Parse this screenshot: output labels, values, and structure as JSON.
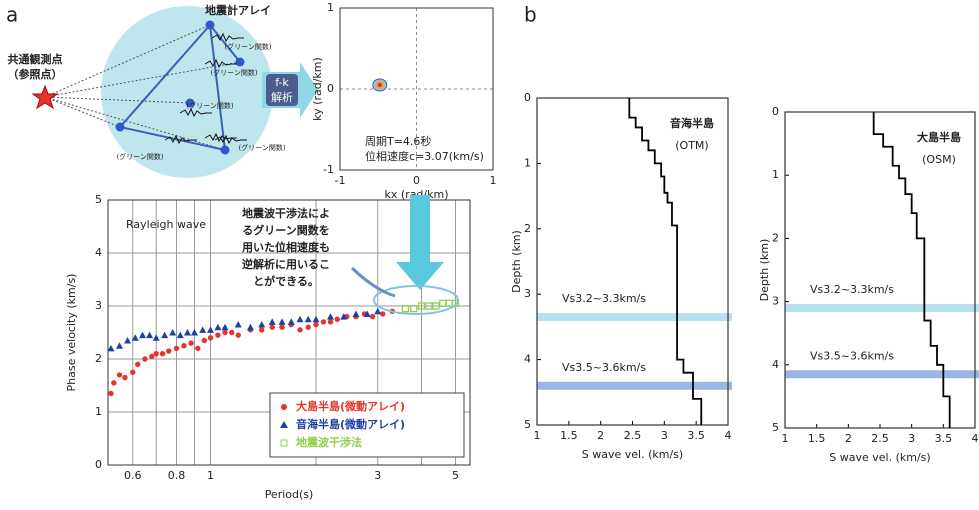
{
  "panel_labels": [
    "a",
    "b"
  ],
  "diagram": {
    "title": "地震計アレイ",
    "reference_point": [
      "共通観測点",
      "（参照点）"
    ],
    "green_function_labels": [
      "(グリーン関数)",
      "(グリーン関数)",
      "(グリーン関数)",
      "(グリーン関数)",
      "(グリーン関数)"
    ],
    "process": [
      "f-k",
      "解析"
    ]
  },
  "chart_data": [
    {
      "type": "contour",
      "xlabel": "kx (rad/km)",
      "ylabel": "ky (rad/km)",
      "xlim": [
        -1,
        1
      ],
      "ylim": [
        -1,
        1
      ],
      "xticks": [
        -1,
        0,
        1
      ],
      "yticks": [
        -1,
        0,
        1
      ],
      "grid": true,
      "peak": {
        "x": -0.48,
        "y": 0.05
      },
      "annotations": [
        "周期T=4.6秒",
        "位相速度c=3.07(km/s)"
      ]
    },
    {
      "type": "scatter",
      "xlabel": "Period(s)",
      "ylabel": "Phase velocity (km/s)",
      "xscale": "log",
      "xlim": [
        0.51,
        5.5
      ],
      "ylim": [
        0,
        5
      ],
      "xticks": [
        0.6,
        0.8,
        1,
        3,
        5
      ],
      "minor_xticks": [
        0.7,
        0.9,
        2,
        4
      ],
      "yticks": [
        0,
        1,
        2,
        3,
        4,
        5
      ],
      "grid": true,
      "legend": "lower right",
      "annotations": [
        "Rayleigh wave"
      ],
      "callout": [
        "地震波干渉法によ",
        "るグリーン関数を",
        "用いた位相速度も",
        "逆解析に用いるこ",
        "とができる。"
      ],
      "series": [
        {
          "name": "大島半島(微動アレイ)",
          "color": "#e8322a",
          "marker": "circle",
          "x": [
            0.52,
            0.53,
            0.55,
            0.57,
            0.6,
            0.62,
            0.65,
            0.68,
            0.7,
            0.73,
            0.76,
            0.8,
            0.84,
            0.88,
            0.92,
            0.96,
            1.0,
            1.05,
            1.1,
            1.15,
            1.2,
            1.3,
            1.4,
            1.5,
            1.6,
            1.7,
            1.8,
            1.9,
            2.0,
            2.1,
            2.2,
            2.3,
            2.45,
            2.6,
            2.75,
            2.9,
            3.1,
            3.3
          ],
          "values": [
            1.35,
            1.55,
            1.7,
            1.65,
            1.75,
            1.9,
            2.0,
            2.05,
            2.1,
            2.1,
            2.15,
            2.2,
            2.25,
            2.3,
            2.2,
            2.35,
            2.4,
            2.45,
            2.5,
            2.5,
            2.45,
            2.55,
            2.55,
            2.6,
            2.6,
            2.65,
            2.55,
            2.6,
            2.65,
            2.7,
            2.7,
            2.75,
            2.8,
            2.8,
            2.85,
            2.8,
            2.85,
            2.9
          ]
        },
        {
          "name": "音海半島(微動アレイ)",
          "color": "#1f3fa8",
          "marker": "triangle",
          "x": [
            0.52,
            0.55,
            0.58,
            0.61,
            0.64,
            0.67,
            0.7,
            0.74,
            0.78,
            0.82,
            0.86,
            0.9,
            0.95,
            1.0,
            1.05,
            1.1,
            1.2,
            1.3,
            1.4,
            1.5,
            1.6,
            1.7,
            1.8,
            1.9,
            2.0,
            2.2,
            2.4,
            2.6,
            2.8,
            3.0
          ],
          "values": [
            2.2,
            2.25,
            2.35,
            2.4,
            2.45,
            2.45,
            2.4,
            2.45,
            2.5,
            2.45,
            2.5,
            2.5,
            2.55,
            2.55,
            2.6,
            2.6,
            2.65,
            2.6,
            2.65,
            2.7,
            2.7,
            2.7,
            2.75,
            2.75,
            2.75,
            2.8,
            2.8,
            2.85,
            2.85,
            2.9
          ]
        },
        {
          "name": "地震波干渉法",
          "color": "#8fd14f",
          "marker": "square",
          "x": [
            3.6,
            3.8,
            4.0,
            4.2,
            4.4,
            4.6,
            4.8,
            5.0
          ],
          "values": [
            2.95,
            2.95,
            3.0,
            3.0,
            3.0,
            3.05,
            3.05,
            3.05
          ]
        }
      ]
    },
    {
      "type": "step",
      "title": [
        "音海半島",
        "(OTM)"
      ],
      "xlabel": "S wave vel. (km/s)",
      "ylabel": "Depth (km)",
      "xlim": [
        1,
        4
      ],
      "ylim": [
        0,
        5
      ],
      "y_inverted": true,
      "xticks": [
        1,
        1.5,
        2,
        2.5,
        3,
        3.5,
        4
      ],
      "yticks": [
        0,
        1,
        2,
        3,
        4,
        5
      ],
      "color": "#000000",
      "x": [
        2.45,
        2.45,
        2.55,
        2.55,
        2.65,
        2.65,
        2.75,
        2.75,
        2.85,
        2.85,
        2.95,
        2.95,
        3.0,
        3.0,
        3.05,
        3.05,
        3.12,
        3.12,
        3.2,
        3.2,
        3.3,
        3.3,
        3.45,
        3.45,
        3.58,
        3.58
      ],
      "y": [
        0,
        0.3,
        0.3,
        0.45,
        0.45,
        0.65,
        0.65,
        0.8,
        0.8,
        1.0,
        1.0,
        1.2,
        1.2,
        1.45,
        1.45,
        1.6,
        1.6,
        1.95,
        1.95,
        4.0,
        4.0,
        4.2,
        4.2,
        4.6,
        4.6,
        5
      ],
      "bands": [
        {
          "label": "Vs3.2~3.3km/s",
          "depth": 3.35,
          "color": "#b5e0ee"
        },
        {
          "label": "Vs3.5~3.6km/s",
          "depth": 4.4,
          "color": "#9db5e6"
        }
      ]
    },
    {
      "type": "step",
      "title": [
        "大島半島",
        "(OSM)"
      ],
      "xlabel": "S wave vel. (km/s)",
      "ylabel": "Depth (km)",
      "xlim": [
        1,
        4
      ],
      "ylim": [
        0,
        5
      ],
      "y_inverted": true,
      "xticks": [
        1,
        1.5,
        2,
        2.5,
        3,
        3.5,
        4
      ],
      "yticks": [
        0,
        1,
        2,
        3,
        4,
        5
      ],
      "color": "#000000",
      "x": [
        2.4,
        2.4,
        2.55,
        2.55,
        2.7,
        2.7,
        2.8,
        2.8,
        2.9,
        2.9,
        3.0,
        3.0,
        3.08,
        3.08,
        3.2,
        3.2,
        3.3,
        3.3,
        3.4,
        3.4,
        3.5,
        3.5,
        3.6,
        3.6
      ],
      "y": [
        0,
        0.35,
        0.35,
        0.55,
        0.55,
        0.85,
        0.85,
        1.05,
        1.05,
        1.3,
        1.3,
        1.6,
        1.6,
        2.0,
        2.0,
        3.3,
        3.3,
        3.7,
        3.7,
        4.0,
        4.0,
        4.5,
        4.5,
        5
      ],
      "bands": [
        {
          "label": "Vs3.2~3.3km/s",
          "depth": 3.1,
          "color": "#b5e0ee"
        },
        {
          "label": "Vs3.5~3.6km/s",
          "depth": 4.15,
          "color": "#9db5e6"
        }
      ]
    }
  ]
}
